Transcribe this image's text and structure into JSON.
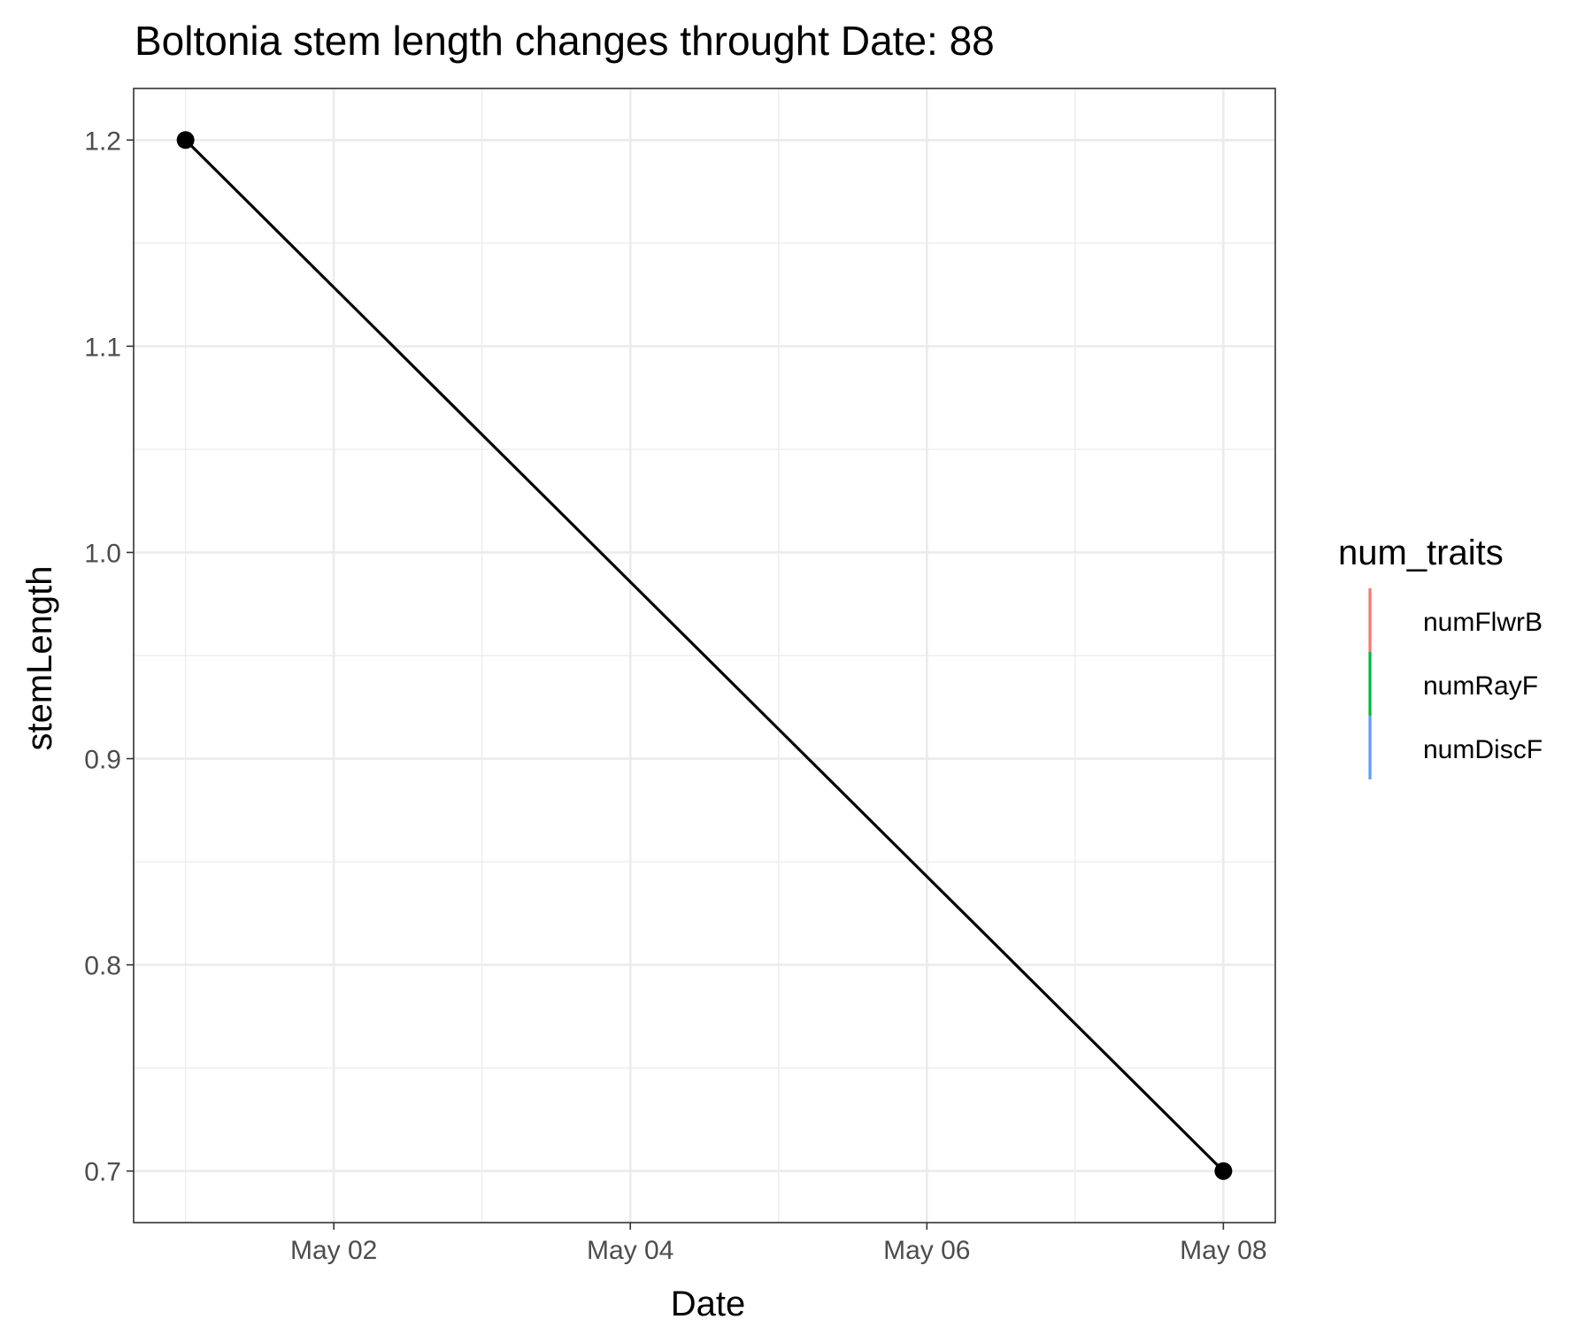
{
  "chart_data": {
    "type": "line",
    "title": "Boltonia stem length changes throught Date:  88",
    "xlabel": "Date",
    "ylabel": "stemLength",
    "x": [
      "2023-05-01",
      "2023-05-08"
    ],
    "series": [
      {
        "values": [
          1.2,
          0.7
        ],
        "color": "#000000"
      }
    ],
    "x_ticks": [
      {
        "date": "2023-05-02",
        "label": "May 02"
      },
      {
        "date": "2023-05-04",
        "label": "May 04"
      },
      {
        "date": "2023-05-06",
        "label": "May 06"
      },
      {
        "date": "2023-05-08",
        "label": "May 08"
      }
    ],
    "y_ticks": [
      {
        "value": 0.7,
        "label": "0.7"
      },
      {
        "value": 0.8,
        "label": "0.8"
      },
      {
        "value": 0.9,
        "label": "0.9"
      },
      {
        "value": 1.0,
        "label": "1.0"
      },
      {
        "value": 1.1,
        "label": "1.1"
      },
      {
        "value": 1.2,
        "label": "1.2"
      }
    ],
    "xlim": [
      "2023-04-30T15:36:00",
      "2023-05-08T08:24:00"
    ],
    "ylim": [
      0.675,
      1.225
    ],
    "grid": true,
    "legend": {
      "title": "num_traits",
      "position": "right",
      "items": [
        {
          "label": "numFlwrB",
          "color": "#F8766D"
        },
        {
          "label": "numRayF",
          "color": "#00BA38"
        },
        {
          "label": "numDiscF",
          "color": "#619CFF"
        }
      ]
    }
  }
}
